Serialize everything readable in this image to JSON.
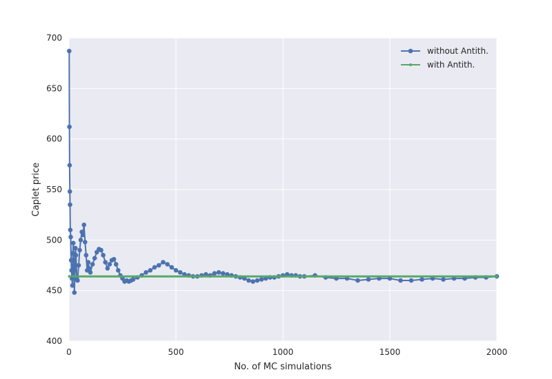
{
  "chart_data": {
    "type": "line",
    "title": "",
    "xlabel": "No. of MC simulations",
    "ylabel": "Caplet price",
    "xlim": [
      0,
      2000
    ],
    "ylim": [
      400,
      700
    ],
    "xticks": [
      "0",
      "500",
      "1000",
      "1500",
      "2000"
    ],
    "yticks": [
      "400",
      "450",
      "500",
      "550",
      "600",
      "650",
      "700"
    ],
    "grid": true,
    "legend_position": "top-right",
    "series": [
      {
        "name": "without Antith.",
        "color": "#4c72b0",
        "marker": "circle",
        "x": [
          1,
          2,
          3,
          4,
          5,
          6,
          8,
          10,
          12,
          14,
          16,
          18,
          20,
          22,
          25,
          28,
          30,
          33,
          36,
          40,
          45,
          50,
          55,
          60,
          65,
          70,
          75,
          80,
          85,
          90,
          95,
          100,
          110,
          120,
          130,
          140,
          150,
          160,
          170,
          180,
          190,
          200,
          210,
          220,
          230,
          240,
          250,
          260,
          270,
          280,
          290,
          300,
          320,
          340,
          360,
          380,
          400,
          420,
          440,
          460,
          480,
          500,
          520,
          540,
          560,
          580,
          600,
          620,
          640,
          660,
          680,
          700,
          720,
          740,
          760,
          780,
          800,
          820,
          840,
          860,
          880,
          900,
          920,
          940,
          960,
          980,
          1000,
          1020,
          1040,
          1060,
          1080,
          1100,
          1150,
          1200,
          1250,
          1300,
          1350,
          1400,
          1450,
          1500,
          1550,
          1600,
          1650,
          1700,
          1750,
          1800,
          1850,
          1900,
          1950,
          2000
        ],
        "y": [
          687,
          612,
          574,
          548,
          535,
          510,
          503,
          480,
          470,
          462,
          455,
          487,
          497,
          480,
          448,
          470,
          492,
          485,
          462,
          460,
          475,
          490,
          500,
          508,
          505,
          515,
          498,
          485,
          470,
          478,
          472,
          468,
          476,
          482,
          488,
          491,
          490,
          485,
          478,
          472,
          476,
          480,
          481,
          476,
          470,
          465,
          462,
          459,
          460,
          459,
          460,
          461,
          463,
          465,
          468,
          470,
          473,
          475,
          478,
          476,
          473,
          470,
          468,
          466,
          465,
          464,
          464,
          465,
          466,
          465,
          467,
          468,
          467,
          466,
          465,
          464,
          463,
          462,
          460,
          459,
          460,
          461,
          462,
          463,
          463,
          464,
          465,
          466,
          465,
          465,
          464,
          464,
          465,
          463,
          462,
          462,
          460,
          461,
          462,
          462,
          460,
          460,
          461,
          462,
          461,
          462,
          462,
          463,
          463,
          464
        ]
      },
      {
        "name": "with Antith.",
        "color": "#55a868",
        "marker": "small-dot",
        "x": [
          1,
          2000
        ],
        "y": [
          464,
          464
        ]
      }
    ]
  }
}
